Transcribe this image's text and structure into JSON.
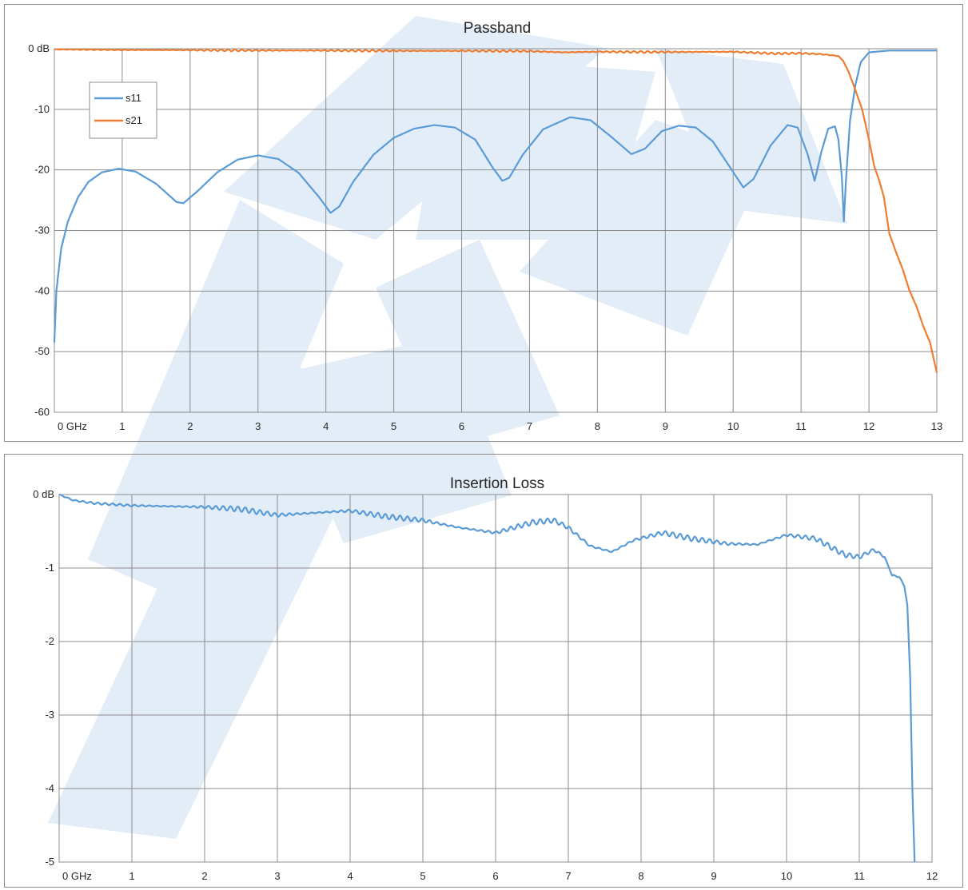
{
  "watermark_color": "#e3edf8",
  "chart_data": [
    {
      "type": "line",
      "title": "Passband",
      "xlabel": "",
      "ylabel": "",
      "xlim": [
        0,
        13
      ],
      "ylim": [
        -60,
        0
      ],
      "grid": true,
      "legend_placement": "top-left",
      "x_tick_labels": [
        "0 GHz",
        "1",
        "2",
        "3",
        "4",
        "5",
        "6",
        "7",
        "8",
        "9",
        "10",
        "11",
        "12",
        "13"
      ],
      "y_tick_labels": [
        "0 dB",
        "-10",
        "-20",
        "-30",
        "-40",
        "-50",
        "-60"
      ],
      "y_tick_values": [
        0,
        -10,
        -20,
        -30,
        -40,
        -50,
        -60
      ],
      "series": [
        {
          "name": "s11",
          "color": "#5b9bd5",
          "points": [
            [
              0.0,
              -48.5
            ],
            [
              0.03,
              -40
            ],
            [
              0.1,
              -33
            ],
            [
              0.2,
              -28.5
            ],
            [
              0.35,
              -24.5
            ],
            [
              0.5,
              -22
            ],
            [
              0.7,
              -20.4
            ],
            [
              0.95,
              -19.8
            ],
            [
              1.2,
              -20.3
            ],
            [
              1.5,
              -22.3
            ],
            [
              1.8,
              -25.3
            ],
            [
              1.9,
              -25.5
            ],
            [
              2.1,
              -23.6
            ],
            [
              2.4,
              -20.4
            ],
            [
              2.7,
              -18.3
            ],
            [
              3.0,
              -17.6
            ],
            [
              3.3,
              -18.2
            ],
            [
              3.6,
              -20.5
            ],
            [
              3.9,
              -24.5
            ],
            [
              4.07,
              -27.1
            ],
            [
              4.2,
              -26
            ],
            [
              4.4,
              -22
            ],
            [
              4.7,
              -17.5
            ],
            [
              5.0,
              -14.7
            ],
            [
              5.3,
              -13.2
            ],
            [
              5.6,
              -12.6
            ],
            [
              5.9,
              -13
            ],
            [
              6.2,
              -15
            ],
            [
              6.45,
              -19.5
            ],
            [
              6.6,
              -21.8
            ],
            [
              6.7,
              -21.3
            ],
            [
              6.9,
              -17.5
            ],
            [
              7.2,
              -13.3
            ],
            [
              7.6,
              -11.3
            ],
            [
              7.9,
              -11.8
            ],
            [
              8.2,
              -14.5
            ],
            [
              8.5,
              -17.4
            ],
            [
              8.7,
              -16.5
            ],
            [
              8.95,
              -13.6
            ],
            [
              9.2,
              -12.7
            ],
            [
              9.45,
              -13
            ],
            [
              9.7,
              -15.3
            ],
            [
              9.95,
              -19.5
            ],
            [
              10.15,
              -22.9
            ],
            [
              10.3,
              -21.5
            ],
            [
              10.55,
              -16
            ],
            [
              10.8,
              -12.6
            ],
            [
              10.95,
              -13
            ],
            [
              11.1,
              -17.5
            ],
            [
              11.2,
              -21.8
            ],
            [
              11.3,
              -17
            ],
            [
              11.4,
              -13.2
            ],
            [
              11.5,
              -12.8
            ],
            [
              11.55,
              -15
            ],
            [
              11.6,
              -21
            ],
            [
              11.63,
              -28.5
            ],
            [
              11.66,
              -22
            ],
            [
              11.72,
              -12
            ],
            [
              11.8,
              -6
            ],
            [
              11.88,
              -2.2
            ],
            [
              12.0,
              -0.6
            ],
            [
              12.3,
              -0.3
            ],
            [
              13.0,
              -0.3
            ]
          ]
        },
        {
          "name": "s21",
          "color": "#ed7d31",
          "points": [
            [
              0.0,
              -0.1
            ],
            [
              1.0,
              -0.2
            ],
            [
              2.0,
              -0.22
            ],
            [
              3.0,
              -0.28
            ],
            [
              4.0,
              -0.3
            ],
            [
              5.0,
              -0.35
            ],
            [
              6.0,
              -0.35
            ],
            [
              7.0,
              -0.4
            ],
            [
              7.5,
              -0.6
            ],
            [
              8.0,
              -0.5
            ],
            [
              9.0,
              -0.55
            ],
            [
              10.0,
              -0.5
            ],
            [
              10.6,
              -0.8
            ],
            [
              11.0,
              -0.75
            ],
            [
              11.3,
              -0.9
            ],
            [
              11.55,
              -1.2
            ],
            [
              11.62,
              -2
            ],
            [
              11.7,
              -3.8
            ],
            [
              11.8,
              -6.8
            ],
            [
              11.9,
              -10
            ],
            [
              12.0,
              -15
            ],
            [
              12.08,
              -19.5
            ],
            [
              12.15,
              -21.7
            ],
            [
              12.22,
              -24.5
            ],
            [
              12.3,
              -30.5
            ],
            [
              12.4,
              -33.6
            ],
            [
              12.5,
              -36.5
            ],
            [
              12.6,
              -40
            ],
            [
              12.7,
              -42.5
            ],
            [
              12.8,
              -45.8
            ],
            [
              12.9,
              -48.5
            ],
            [
              13.0,
              -53.5
            ]
          ]
        }
      ]
    },
    {
      "type": "line",
      "title": "Insertion Loss",
      "xlabel": "",
      "ylabel": "",
      "xlim": [
        0,
        12
      ],
      "ylim": [
        -5,
        0
      ],
      "grid": true,
      "x_tick_labels": [
        "0 GHz",
        "1",
        "2",
        "3",
        "4",
        "5",
        "6",
        "7",
        "8",
        "9",
        "10",
        "11",
        "12"
      ],
      "y_tick_labels": [
        "0 dB",
        "-1",
        "-2",
        "-3",
        "-4",
        "-5"
      ],
      "y_tick_values": [
        0,
        -1,
        -2,
        -3,
        -4,
        -5
      ],
      "series": [
        {
          "color": "#5b9bd5",
          "points": [
            [
              0.0,
              0.0
            ],
            [
              0.2,
              -0.08
            ],
            [
              0.5,
              -0.12
            ],
            [
              1.0,
              -0.15
            ],
            [
              1.5,
              -0.16
            ],
            [
              2.0,
              -0.17
            ],
            [
              2.5,
              -0.2
            ],
            [
              3.0,
              -0.28
            ],
            [
              3.5,
              -0.25
            ],
            [
              4.0,
              -0.22
            ],
            [
              4.5,
              -0.3
            ],
            [
              5.0,
              -0.35
            ],
            [
              5.5,
              -0.45
            ],
            [
              6.0,
              -0.52
            ],
            [
              6.5,
              -0.38
            ],
            [
              6.8,
              -0.35
            ],
            [
              7.0,
              -0.45
            ],
            [
              7.3,
              -0.7
            ],
            [
              7.6,
              -0.78
            ],
            [
              7.9,
              -0.62
            ],
            [
              8.3,
              -0.52
            ],
            [
              8.7,
              -0.6
            ],
            [
              9.2,
              -0.67
            ],
            [
              9.6,
              -0.68
            ],
            [
              10.0,
              -0.55
            ],
            [
              10.4,
              -0.6
            ],
            [
              10.8,
              -0.82
            ],
            [
              11.0,
              -0.85
            ],
            [
              11.2,
              -0.75
            ],
            [
              11.35,
              -0.85
            ],
            [
              11.45,
              -1.1
            ],
            [
              11.55,
              -1.12
            ],
            [
              11.62,
              -1.25
            ],
            [
              11.66,
              -1.5
            ],
            [
              11.7,
              -2.5
            ],
            [
              11.73,
              -4.0
            ],
            [
              11.76,
              -5.0
            ]
          ]
        }
      ]
    }
  ]
}
